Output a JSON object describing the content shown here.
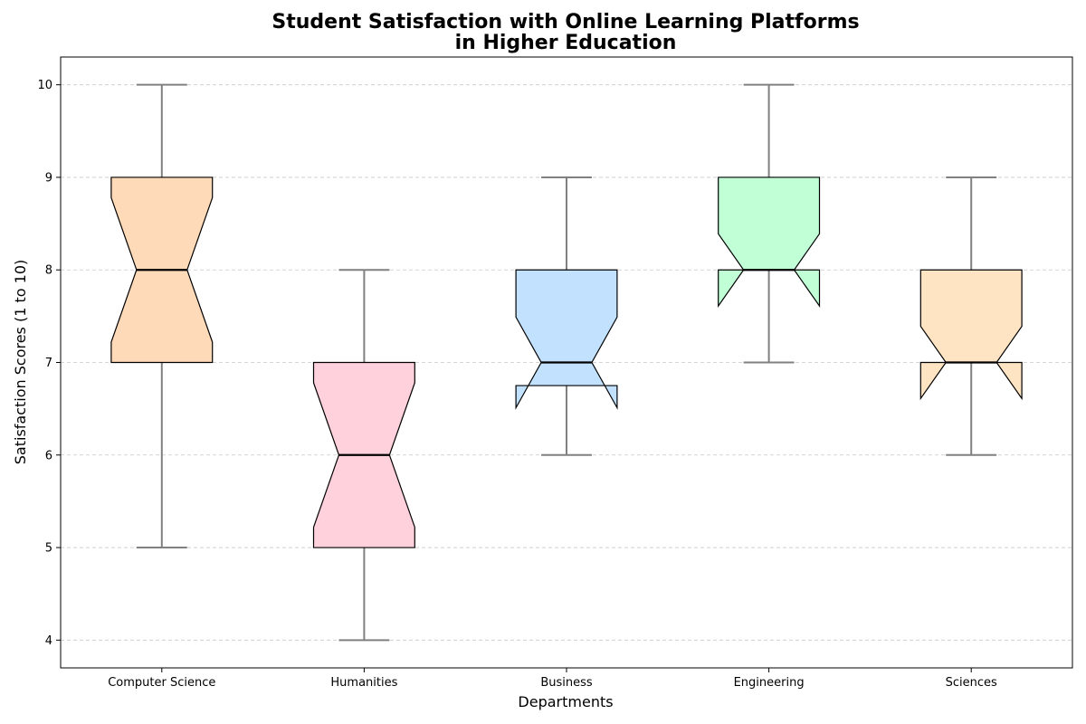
{
  "chart_data": {
    "type": "boxplot",
    "title_lines": [
      "Student Satisfaction with Online Learning Platforms",
      "in Higher Education"
    ],
    "xlabel": "Departments",
    "ylabel": "Satisfaction Scores (1 to 10)",
    "ylim": [
      3.7,
      10.3
    ],
    "yticks": [
      4,
      5,
      6,
      7,
      8,
      9,
      10
    ],
    "grid": "y-dashed",
    "notched": true,
    "categories": [
      "Computer Science",
      "Humanities",
      "Business",
      "Engineering",
      "Sciences"
    ],
    "boxes": [
      {
        "category": "Computer Science",
        "whisker_low": 5,
        "q1": 7,
        "median": 8,
        "q3": 9,
        "whisker_high": 10,
        "notch_low": 7.22,
        "notch_high": 8.78,
        "color": "#FFDAB9"
      },
      {
        "category": "Humanities",
        "whisker_low": 4,
        "q1": 5,
        "median": 6,
        "q3": 7,
        "whisker_high": 8,
        "notch_low": 5.22,
        "notch_high": 6.78,
        "color": "#FFD1DC"
      },
      {
        "category": "Business",
        "whisker_low": 6,
        "q1": 6.75,
        "median": 7,
        "q3": 8,
        "whisker_high": 9,
        "notch_low": 6.51,
        "notch_high": 7.49,
        "color": "#C1E1FF"
      },
      {
        "category": "Engineering",
        "whisker_low": 7,
        "q1": 8,
        "median": 8,
        "q3": 9,
        "whisker_high": 10,
        "notch_low": 7.61,
        "notch_high": 8.39,
        "color": "#C1FFD7"
      },
      {
        "category": "Sciences",
        "whisker_low": 6,
        "q1": 7,
        "median": 7,
        "q3": 8,
        "whisker_high": 9,
        "notch_low": 6.61,
        "notch_high": 7.39,
        "color": "#FFE4C4"
      }
    ],
    "colors": {
      "whisker": "#808080",
      "box_edge": "#000000",
      "median": "#000000",
      "grid": "#c8c8c8"
    }
  }
}
